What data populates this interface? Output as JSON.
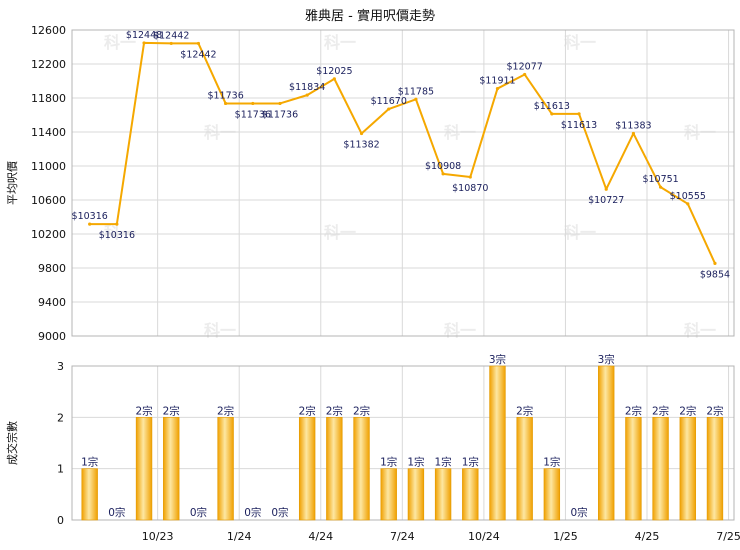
{
  "chart_data": [
    {
      "type": "line",
      "title": "雅典居 - 實用呎價走勢",
      "ylabel": "平均呎價",
      "ylim": [
        9000,
        12600
      ],
      "y_ticks": [
        9000,
        9400,
        9800,
        10200,
        10600,
        11000,
        11400,
        11800,
        12200,
        12600
      ],
      "x": [
        "2023-08",
        "2023-09",
        "2023-10",
        "2023-11",
        "2023-12",
        "2024-01",
        "2024-02",
        "2024-03",
        "2024-04",
        "2024-05",
        "2024-06",
        "2024-07",
        "2024-08",
        "2024-09",
        "2024-10",
        "2024-11",
        "2024-12",
        "2025-01",
        "2025-02",
        "2025-03",
        "2025-04",
        "2025-05",
        "2025-06",
        "2025-07"
      ],
      "x_tick_labels": [
        {
          "x": "2023-10",
          "label": "10/23"
        },
        {
          "x": "2024-01",
          "label": "1/24"
        },
        {
          "x": "2024-04",
          "label": "4/24"
        },
        {
          "x": "2024-07",
          "label": "7/24"
        },
        {
          "x": "2024-10",
          "label": "10/24"
        },
        {
          "x": "2025-01",
          "label": "1/25"
        },
        {
          "x": "2025-04",
          "label": "4/25"
        },
        {
          "x": "2025-07",
          "label": "7/25"
        }
      ],
      "series": [
        {
          "color": "#f5a800",
          "values": [
            10316,
            10316,
            12448,
            12442,
            12442,
            11736,
            11736,
            11736,
            11834,
            12025,
            11382,
            11670,
            11785,
            10908,
            10870,
            11911,
            12077,
            11613,
            11613,
            10727,
            11383,
            10751,
            10555,
            9854
          ],
          "labels": [
            "$10316",
            "$10316",
            "$12448",
            "$12442",
            "$12442",
            "$11736",
            "$11736",
            "$11736",
            "$11834",
            "$12025",
            "$11382",
            "$11670",
            "$11785",
            "$10908",
            "$10870",
            "$11911",
            "$12077",
            "$11613",
            "$11613",
            "$10727",
            "$11383",
            "$10751",
            "$10555",
            "$9854"
          ]
        }
      ],
      "grid": true,
      "legend": "none"
    },
    {
      "type": "bar",
      "ylabel": "成交宗數",
      "ylim": [
        0,
        3
      ],
      "y_ticks": [
        0,
        1,
        2,
        3
      ],
      "x": [
        "2023-08",
        "2023-09",
        "2023-10",
        "2023-11",
        "2023-12",
        "2024-01",
        "2024-02",
        "2024-03",
        "2024-04",
        "2024-05",
        "2024-06",
        "2024-07",
        "2024-08",
        "2024-09",
        "2024-10",
        "2024-11",
        "2024-12",
        "2025-01",
        "2025-02",
        "2025-03",
        "2025-04",
        "2025-05",
        "2025-06",
        "2025-07"
      ],
      "values": [
        1,
        0,
        2,
        2,
        0,
        2,
        0,
        0,
        2,
        2,
        2,
        1,
        1,
        1,
        1,
        3,
        2,
        1,
        0,
        3,
        2,
        2,
        2,
        2
      ],
      "labels": [
        "1宗",
        "0宗",
        "2宗",
        "2宗",
        "0宗",
        "2宗",
        "0宗",
        "0宗",
        "2宗",
        "2宗",
        "2宗",
        "1宗",
        "1宗",
        "1宗",
        "1宗",
        "3宗",
        "2宗",
        "1宗",
        "0宗",
        "3宗",
        "2宗",
        "2宗",
        "2宗",
        "2宗"
      ],
      "bar_color": "#f5a800",
      "grid": true,
      "legend": "none"
    }
  ],
  "watermark": "科一"
}
